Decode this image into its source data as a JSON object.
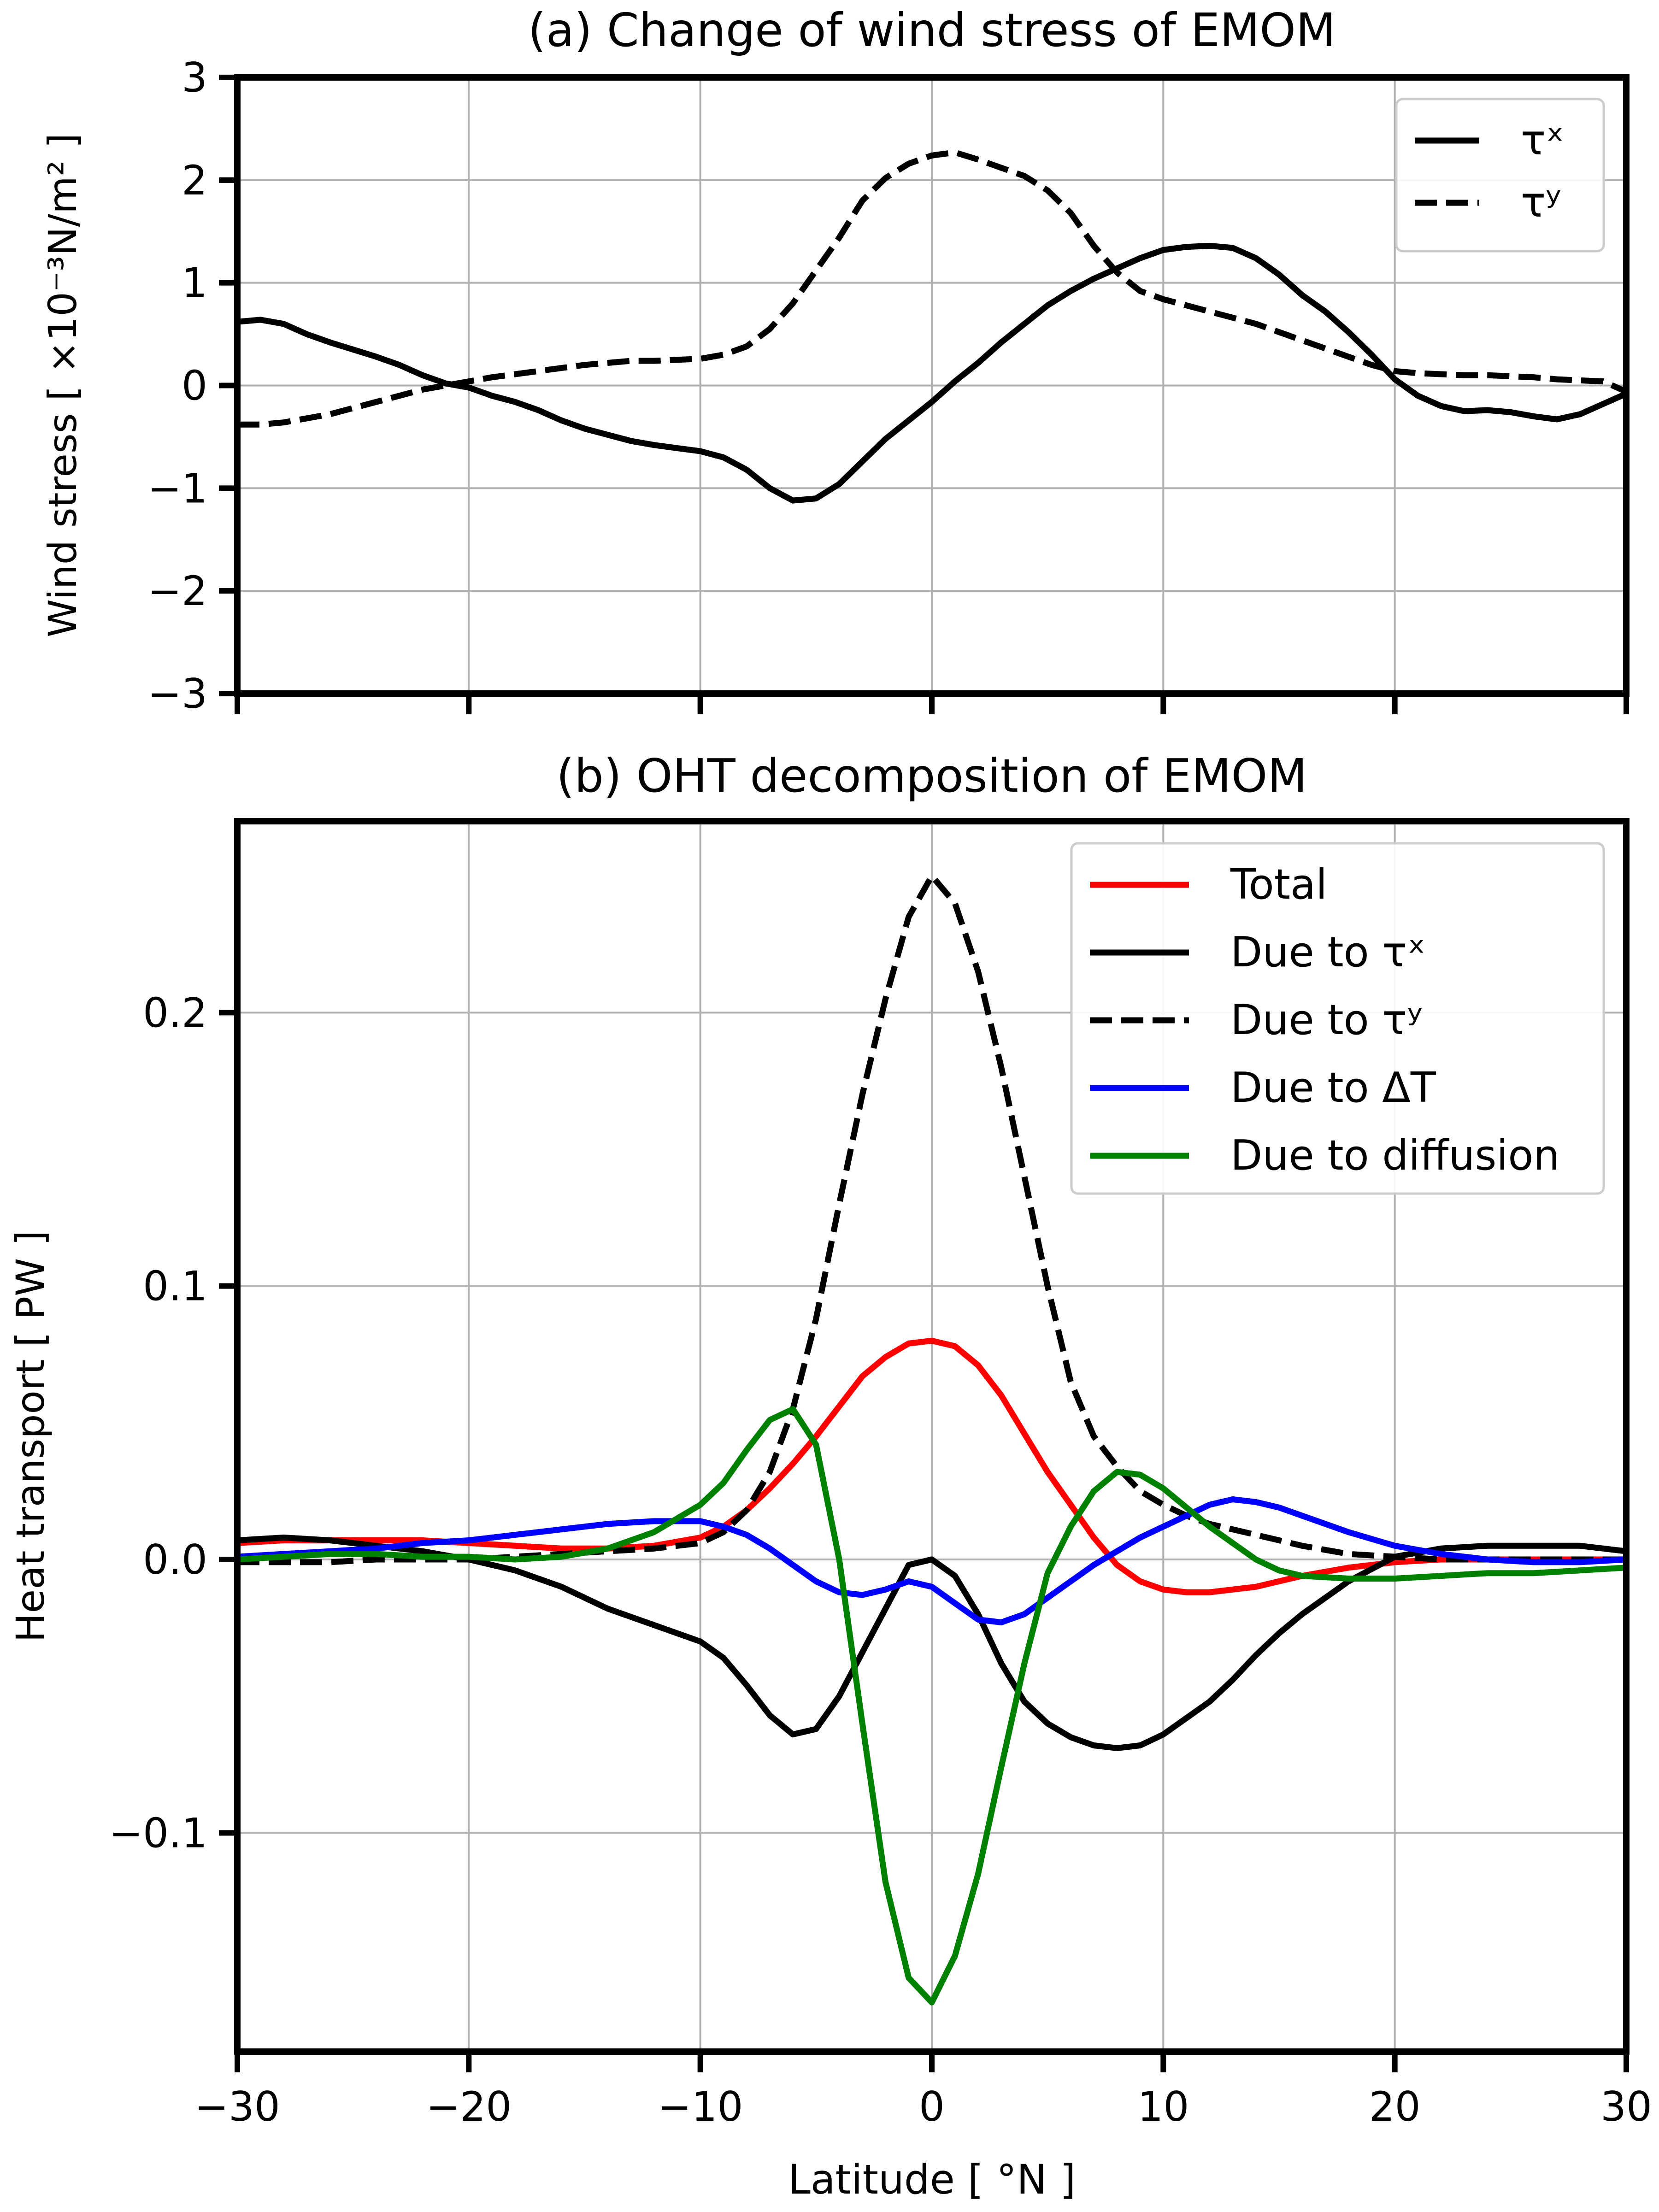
{
  "chart_data": [
    {
      "panel": "a",
      "type": "line",
      "title": "(a) Change of wind stress of EMOM",
      "ylabel": "Wind stress [ ×10⁻³N/m² ]",
      "xlabel": "",
      "xlim": [
        -30,
        30
      ],
      "ylim": [
        -3,
        3
      ],
      "yticks": [
        -3,
        -2,
        -1,
        0,
        1,
        2,
        3
      ],
      "ytick_labels": [
        "−3",
        "−2",
        "−1",
        "0",
        "1",
        "2",
        "3"
      ],
      "xticks": [
        -30,
        -20,
        -10,
        0,
        10,
        20,
        30
      ],
      "grid": true,
      "legend_position": "top-right",
      "series": [
        {
          "name": "τˣ",
          "color": "#000000",
          "style": "solid",
          "x": [
            -30,
            -29,
            -28,
            -27,
            -26,
            -25,
            -24,
            -23,
            -22,
            -21,
            -20,
            -19,
            -18,
            -17,
            -16,
            -15,
            -14,
            -13,
            -12,
            -11,
            -10,
            -9,
            -8,
            -7,
            -6,
            -5,
            -4,
            -3,
            -2,
            -1,
            0,
            1,
            2,
            3,
            4,
            5,
            6,
            7,
            8,
            9,
            10,
            11,
            12,
            13,
            14,
            15,
            16,
            17,
            18,
            19,
            20,
            21,
            22,
            23,
            24,
            25,
            26,
            27,
            28,
            29,
            30
          ],
          "y": [
            0.62,
            0.64,
            0.6,
            0.5,
            0.42,
            0.35,
            0.28,
            0.2,
            0.1,
            0.02,
            -0.02,
            -0.1,
            -0.16,
            -0.24,
            -0.34,
            -0.42,
            -0.48,
            -0.54,
            -0.58,
            -0.61,
            -0.64,
            -0.7,
            -0.82,
            -1.0,
            -1.12,
            -1.1,
            -0.96,
            -0.74,
            -0.52,
            -0.34,
            -0.16,
            0.04,
            0.22,
            0.42,
            0.6,
            0.78,
            0.92,
            1.04,
            1.14,
            1.24,
            1.32,
            1.35,
            1.36,
            1.34,
            1.24,
            1.08,
            0.88,
            0.72,
            0.52,
            0.3,
            0.06,
            -0.1,
            -0.2,
            -0.25,
            -0.24,
            -0.26,
            -0.3,
            -0.33,
            -0.28,
            -0.18,
            -0.08
          ]
        },
        {
          "name": "τʸ",
          "color": "#000000",
          "style": "dashed",
          "x": [
            -30,
            -29,
            -28,
            -27,
            -26,
            -25,
            -24,
            -23,
            -22,
            -21,
            -20,
            -19,
            -18,
            -17,
            -16,
            -15,
            -14,
            -13,
            -12,
            -11,
            -10,
            -9,
            -8,
            -7,
            -6,
            -5,
            -4,
            -3,
            -2,
            -1,
            0,
            1,
            2,
            3,
            4,
            5,
            6,
            7,
            8,
            9,
            10,
            11,
            12,
            13,
            14,
            15,
            16,
            17,
            18,
            19,
            20,
            21,
            22,
            23,
            24,
            25,
            26,
            27,
            28,
            29,
            30
          ],
          "y": [
            -0.38,
            -0.38,
            -0.36,
            -0.32,
            -0.28,
            -0.22,
            -0.16,
            -0.1,
            -0.04,
            0.0,
            0.04,
            0.08,
            0.11,
            0.14,
            0.17,
            0.2,
            0.22,
            0.24,
            0.24,
            0.25,
            0.26,
            0.3,
            0.38,
            0.55,
            0.8,
            1.12,
            1.44,
            1.8,
            2.02,
            2.16,
            2.24,
            2.27,
            2.2,
            2.12,
            2.04,
            1.9,
            1.68,
            1.36,
            1.1,
            0.92,
            0.84,
            0.78,
            0.72,
            0.66,
            0.6,
            0.52,
            0.44,
            0.36,
            0.28,
            0.2,
            0.14,
            0.12,
            0.11,
            0.1,
            0.1,
            0.09,
            0.08,
            0.06,
            0.05,
            0.04,
            -0.06
          ]
        }
      ]
    },
    {
      "panel": "b",
      "type": "line",
      "title": "(b) OHT decomposition of EMOM",
      "ylabel": "Heat transport [ PW ]",
      "xlabel": "Latitude [ °N ]",
      "xlim": [
        -30,
        30
      ],
      "ylim": [
        -0.18,
        0.27
      ],
      "yticks": [
        -0.1,
        0.0,
        0.1,
        0.2
      ],
      "ytick_labels": [
        "−0.1",
        "0.0",
        "0.1",
        "0.2"
      ],
      "xticks": [
        -30,
        -20,
        -10,
        0,
        10,
        20,
        30
      ],
      "xtick_labels": [
        "−30",
        "−20",
        "−10",
        "0",
        "10",
        "20",
        "30"
      ],
      "grid": true,
      "legend_position": "top-right",
      "series": [
        {
          "name": "Total",
          "color": "#ff0000",
          "style": "solid",
          "x": [
            -30,
            -28,
            -26,
            -24,
            -22,
            -20,
            -18,
            -16,
            -14,
            -12,
            -10,
            -9,
            -8,
            -7,
            -6,
            -5,
            -4,
            -3,
            -2,
            -1,
            0,
            1,
            2,
            3,
            4,
            5,
            6,
            7,
            8,
            9,
            10,
            11,
            12,
            14,
            16,
            18,
            20,
            22,
            24,
            26,
            28,
            30
          ],
          "y": [
            0.006,
            0.007,
            0.007,
            0.007,
            0.007,
            0.006,
            0.005,
            0.004,
            0.004,
            0.005,
            0.008,
            0.012,
            0.018,
            0.026,
            0.035,
            0.045,
            0.056,
            0.067,
            0.074,
            0.079,
            0.08,
            0.078,
            0.071,
            0.06,
            0.046,
            0.032,
            0.02,
            0.008,
            -0.002,
            -0.008,
            -0.011,
            -0.012,
            -0.012,
            -0.01,
            -0.006,
            -0.003,
            -0.001,
            0.0,
            0.0,
            0.0,
            0.0,
            0.0
          ]
        },
        {
          "name": "Due to τˣ",
          "color": "#000000",
          "style": "solid",
          "x": [
            -30,
            -28,
            -26,
            -24,
            -22,
            -20,
            -18,
            -16,
            -14,
            -12,
            -10,
            -9,
            -8,
            -7,
            -6,
            -5,
            -4,
            -3,
            -2,
            -1,
            0,
            1,
            2,
            3,
            4,
            5,
            6,
            7,
            8,
            9,
            10,
            11,
            12,
            13,
            14,
            15,
            16,
            18,
            20,
            22,
            24,
            26,
            28,
            30
          ],
          "y": [
            0.007,
            0.008,
            0.007,
            0.005,
            0.003,
            0.0,
            -0.004,
            -0.01,
            -0.018,
            -0.024,
            -0.03,
            -0.036,
            -0.046,
            -0.057,
            -0.064,
            -0.062,
            -0.05,
            -0.034,
            -0.018,
            -0.002,
            0.0,
            -0.006,
            -0.02,
            -0.038,
            -0.052,
            -0.06,
            -0.065,
            -0.068,
            -0.069,
            -0.068,
            -0.064,
            -0.058,
            -0.052,
            -0.044,
            -0.035,
            -0.027,
            -0.02,
            -0.008,
            0.001,
            0.004,
            0.005,
            0.005,
            0.005,
            0.003
          ]
        },
        {
          "name": "Due to τʸ",
          "color": "#000000",
          "style": "dashed",
          "x": [
            -30,
            -28,
            -26,
            -24,
            -22,
            -20,
            -18,
            -16,
            -14,
            -12,
            -10,
            -9,
            -8,
            -7,
            -6,
            -5,
            -4,
            -3,
            -2,
            -1,
            0,
            1,
            2,
            3,
            4,
            5,
            6,
            7,
            8,
            9,
            10,
            11,
            12,
            14,
            16,
            18,
            20,
            22,
            24,
            26,
            28,
            30
          ],
          "y": [
            -0.001,
            -0.001,
            -0.001,
            0.0,
            0.0,
            0.0,
            0.001,
            0.002,
            0.003,
            0.004,
            0.006,
            0.01,
            0.018,
            0.032,
            0.055,
            0.088,
            0.13,
            0.17,
            0.205,
            0.235,
            0.25,
            0.24,
            0.215,
            0.18,
            0.14,
            0.1,
            0.065,
            0.045,
            0.034,
            0.025,
            0.02,
            0.016,
            0.013,
            0.009,
            0.005,
            0.002,
            0.001,
            0.0,
            0.0,
            0.0,
            0.0,
            0.0
          ]
        },
        {
          "name": "Due to ΔT",
          "color": "#0000ff",
          "style": "solid",
          "x": [
            -30,
            -28,
            -26,
            -24,
            -22,
            -20,
            -18,
            -16,
            -14,
            -12,
            -10,
            -9,
            -8,
            -7,
            -6,
            -5,
            -4,
            -3,
            -2,
            -1,
            0,
            1,
            2,
            3,
            4,
            5,
            6,
            7,
            8,
            9,
            10,
            11,
            12,
            13,
            14,
            15,
            16,
            18,
            20,
            22,
            24,
            26,
            28,
            30
          ],
          "y": [
            0.001,
            0.002,
            0.003,
            0.004,
            0.006,
            0.007,
            0.009,
            0.011,
            0.013,
            0.014,
            0.014,
            0.012,
            0.009,
            0.004,
            -0.002,
            -0.008,
            -0.012,
            -0.013,
            -0.011,
            -0.008,
            -0.01,
            -0.016,
            -0.022,
            -0.023,
            -0.02,
            -0.014,
            -0.008,
            -0.002,
            0.003,
            0.008,
            0.012,
            0.016,
            0.02,
            0.022,
            0.021,
            0.019,
            0.016,
            0.01,
            0.005,
            0.002,
            0.0,
            -0.001,
            -0.001,
            0.0
          ]
        },
        {
          "name": "Due to diffusion",
          "color": "#008000",
          "style": "solid",
          "x": [
            -30,
            -28,
            -26,
            -24,
            -22,
            -20,
            -18,
            -16,
            -14,
            -12,
            -10,
            -9,
            -8,
            -7,
            -6,
            -5,
            -4,
            -3,
            -2,
            -1,
            0,
            1,
            2,
            3,
            4,
            5,
            6,
            7,
            8,
            9,
            10,
            11,
            12,
            13,
            14,
            15,
            16,
            18,
            20,
            22,
            24,
            26,
            28,
            30
          ],
          "y": [
            0.0,
            0.001,
            0.002,
            0.002,
            0.001,
            0.001,
            0.0,
            0.001,
            0.004,
            0.01,
            0.02,
            0.028,
            0.04,
            0.051,
            0.055,
            0.042,
            0.0,
            -0.06,
            -0.118,
            -0.153,
            -0.162,
            -0.145,
            -0.115,
            -0.076,
            -0.038,
            -0.005,
            0.012,
            0.025,
            0.032,
            0.031,
            0.026,
            0.019,
            0.012,
            0.006,
            0.0,
            -0.004,
            -0.006,
            -0.007,
            -0.007,
            -0.006,
            -0.005,
            -0.005,
            -0.004,
            -0.003
          ]
        }
      ]
    }
  ]
}
